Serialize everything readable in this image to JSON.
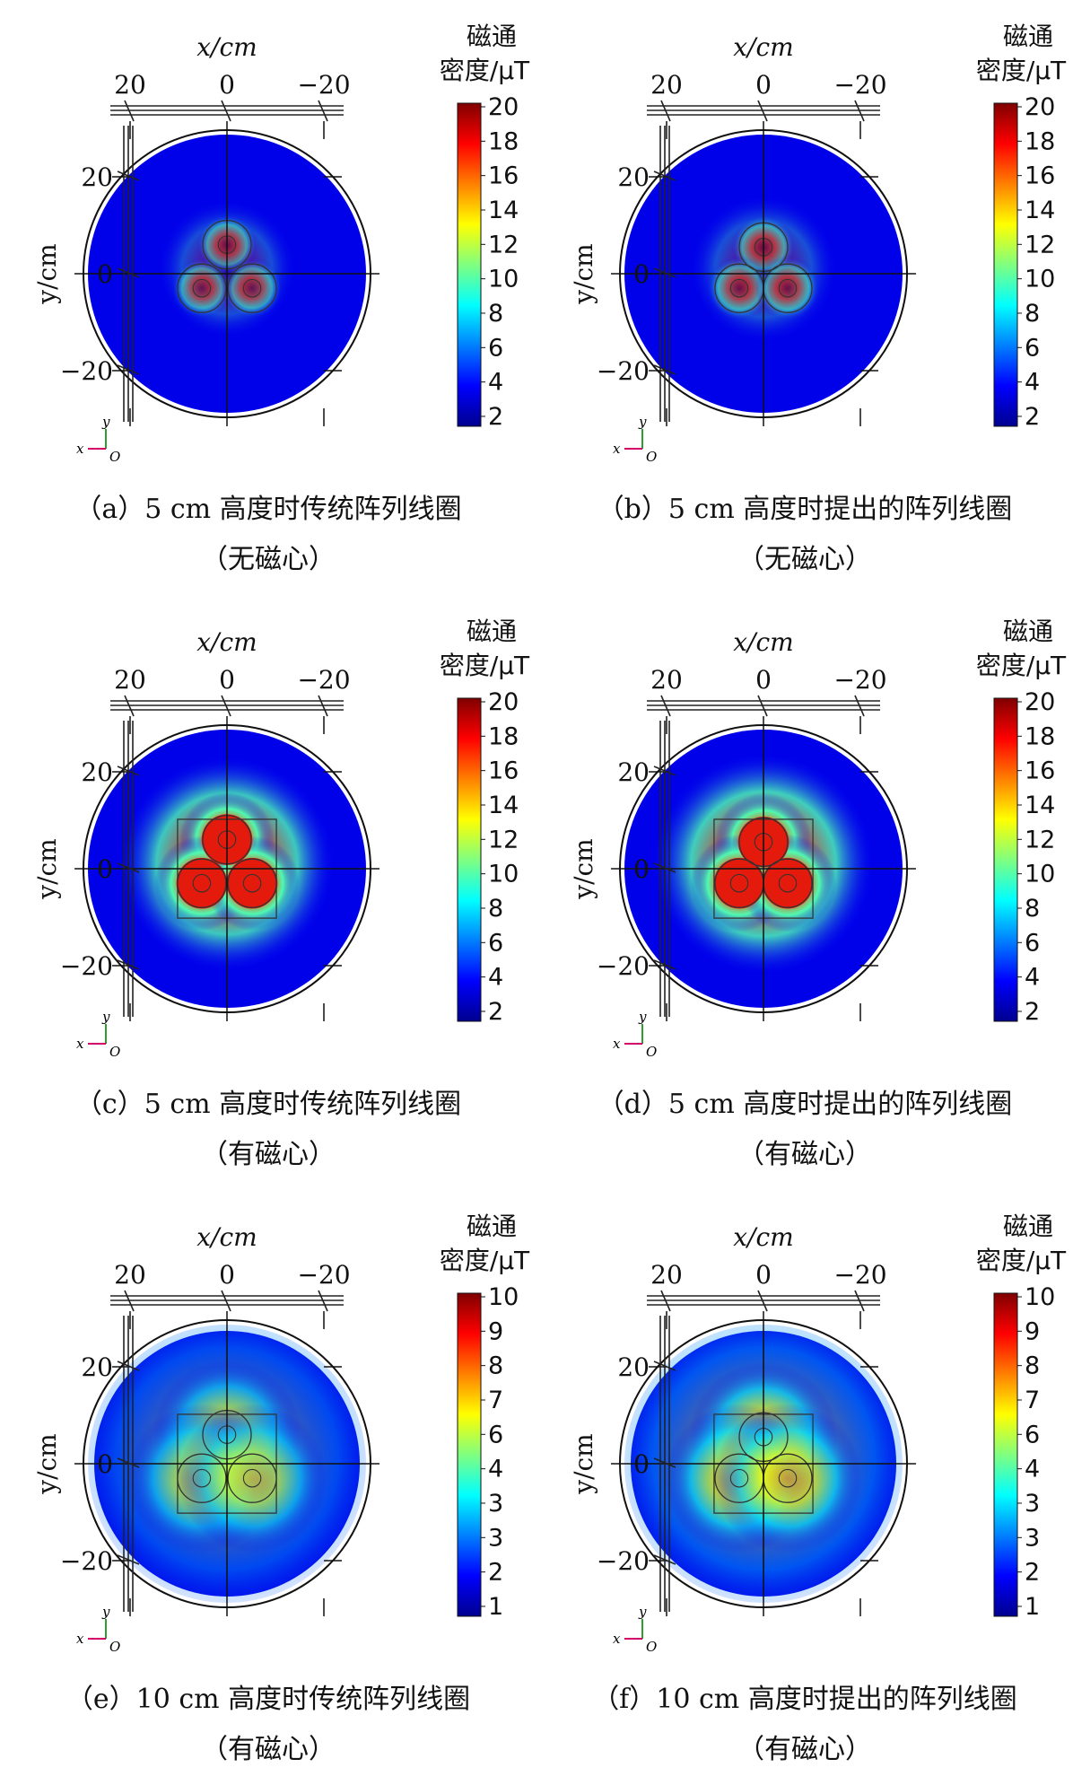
{
  "chart_data": [
    {
      "type": "heatmap",
      "panel_id": "a",
      "caption_line1": "（a）5 cm 高度时传统阵列线圈",
      "caption_line2": "（无磁心）",
      "xlabel": "x/cm",
      "ylabel": "y/cm",
      "x_ticks": [
        "20",
        "0",
        "−20"
      ],
      "y_ticks": [
        "20",
        "0",
        "−20"
      ],
      "xlim": [
        25,
        -25
      ],
      "ylim": [
        -25,
        25
      ],
      "colorbar_title": [
        "磁通",
        "密度/μT"
      ],
      "colorbar_ticks": [
        "20",
        "18",
        "16",
        "14",
        "12",
        "10",
        "8",
        "6",
        "4",
        "2"
      ],
      "colorbar_range": [
        0,
        20
      ],
      "has_core": false,
      "core_square": false,
      "layout": "traditional",
      "coil_centers_cm": [
        [
          0,
          6
        ],
        [
          5.2,
          -3
        ],
        [
          -5.2,
          -3
        ]
      ],
      "coil_radius_cm": 5,
      "peak_uT": 20,
      "field_level": 0.58,
      "field_spread_cm": 4.5,
      "triad": {
        "x": "x",
        "y": "y",
        "origin": "O"
      }
    },
    {
      "type": "heatmap",
      "panel_id": "b",
      "caption_line1": "（b）5 cm 高度时提出的阵列线圈",
      "caption_line2": "（无磁心）",
      "xlabel": "x/cm",
      "ylabel": "y/cm",
      "x_ticks": [
        "20",
        "0",
        "−20"
      ],
      "y_ticks": [
        "20",
        "0",
        "−20"
      ],
      "xlim": [
        25,
        -25
      ],
      "ylim": [
        -25,
        25
      ],
      "colorbar_title": [
        "磁通",
        "密度/μT"
      ],
      "colorbar_ticks": [
        "20",
        "18",
        "16",
        "14",
        "12",
        "10",
        "8",
        "6",
        "4",
        "2"
      ],
      "colorbar_range": [
        0,
        20
      ],
      "has_core": false,
      "core_square": false,
      "layout": "proposed",
      "coil_centers_cm": [
        [
          0,
          5.5
        ],
        [
          5,
          -3
        ],
        [
          -5,
          -3
        ]
      ],
      "coil_radius_cm": 5,
      "peak_uT": 20,
      "field_level": 0.6,
      "field_spread_cm": 4.8,
      "triad": {
        "x": "x",
        "y": "y",
        "origin": "O"
      }
    },
    {
      "type": "heatmap",
      "panel_id": "c",
      "caption_line1": "（c）5 cm 高度时传统阵列线圈",
      "caption_line2": "（有磁心）",
      "xlabel": "x/cm",
      "ylabel": "y/cm",
      "x_ticks": [
        "20",
        "0",
        "−20"
      ],
      "y_ticks": [
        "20",
        "0",
        "−20"
      ],
      "xlim": [
        25,
        -25
      ],
      "ylim": [
        -25,
        25
      ],
      "colorbar_title": [
        "磁通",
        "密度/μT"
      ],
      "colorbar_ticks": [
        "20",
        "18",
        "16",
        "14",
        "12",
        "10",
        "8",
        "6",
        "4",
        "2"
      ],
      "colorbar_range": [
        0,
        20
      ],
      "has_core": true,
      "core_square": true,
      "layout": "traditional",
      "coil_centers_cm": [
        [
          0,
          6
        ],
        [
          5.2,
          -3
        ],
        [
          -5.2,
          -3
        ]
      ],
      "coil_radius_cm": 5,
      "peak_uT": 20,
      "field_level": 1.5,
      "field_spread_cm": 7,
      "triad": {
        "x": "x",
        "y": "y",
        "origin": "O"
      }
    },
    {
      "type": "heatmap",
      "panel_id": "d",
      "caption_line1": "（d）5 cm 高度时提出的阵列线圈",
      "caption_line2": "（有磁心）",
      "xlabel": "x/cm",
      "ylabel": "y/cm",
      "x_ticks": [
        "20",
        "0",
        "−20"
      ],
      "y_ticks": [
        "20",
        "0",
        "−20"
      ],
      "xlim": [
        25,
        -25
      ],
      "ylim": [
        -25,
        25
      ],
      "colorbar_title": [
        "磁通",
        "密度/μT"
      ],
      "colorbar_ticks": [
        "20",
        "18",
        "16",
        "14",
        "12",
        "10",
        "8",
        "6",
        "4",
        "2"
      ],
      "colorbar_range": [
        0,
        20
      ],
      "has_core": true,
      "core_square": true,
      "layout": "proposed",
      "coil_centers_cm": [
        [
          0,
          5.5
        ],
        [
          5,
          -3
        ],
        [
          -5,
          -3
        ]
      ],
      "coil_radius_cm": 5,
      "peak_uT": 20,
      "field_level": 1.55,
      "field_spread_cm": 7.2,
      "triad": {
        "x": "x",
        "y": "y",
        "origin": "O"
      }
    },
    {
      "type": "heatmap",
      "panel_id": "e",
      "caption_line1": "（e）10 cm 高度时传统阵列线圈",
      "caption_line2": "（有磁心）",
      "xlabel": "x/cm",
      "ylabel": "y/cm",
      "x_ticks": [
        "20",
        "0",
        "−20"
      ],
      "y_ticks": [
        "20",
        "0",
        "−20"
      ],
      "xlim": [
        25,
        -25
      ],
      "ylim": [
        -25,
        25
      ],
      "colorbar_title": [
        "磁通",
        "密度/μT"
      ],
      "colorbar_ticks": [
        "10",
        "9",
        "8",
        "7",
        "6",
        "4",
        "3",
        "3",
        "2",
        "1"
      ],
      "colorbar_range": [
        0,
        10
      ],
      "has_core": true,
      "core_square": true,
      "layout": "traditional",
      "coil_centers_cm": [
        [
          0,
          6
        ],
        [
          5.2,
          -3
        ],
        [
          -5.2,
          -3
        ]
      ],
      "coil_radius_cm": 5,
      "peak_uT": 7,
      "field_level": 0.72,
      "field_spread_cm": 11,
      "triad": {
        "x": "x",
        "y": "y",
        "origin": "O"
      }
    },
    {
      "type": "heatmap",
      "panel_id": "f",
      "caption_line1": "（f）10 cm 高度时提出的阵列线圈",
      "caption_line2": "（有磁心）",
      "xlabel": "x/cm",
      "ylabel": "y/cm",
      "x_ticks": [
        "20",
        "0",
        "−20"
      ],
      "y_ticks": [
        "20",
        "0",
        "−20"
      ],
      "xlim": [
        25,
        -25
      ],
      "ylim": [
        -25,
        25
      ],
      "colorbar_title": [
        "磁通",
        "密度/μT"
      ],
      "colorbar_ticks": [
        "10",
        "9",
        "8",
        "7",
        "6",
        "4",
        "3",
        "3",
        "2",
        "1"
      ],
      "colorbar_range": [
        0,
        10
      ],
      "has_core": true,
      "core_square": true,
      "layout": "proposed",
      "coil_centers_cm": [
        [
          0,
          5.5
        ],
        [
          5,
          -3
        ],
        [
          -5,
          -3
        ]
      ],
      "coil_radius_cm": 5,
      "peak_uT": 7.5,
      "field_level": 0.76,
      "field_spread_cm": 11,
      "triad": {
        "x": "x",
        "y": "y",
        "origin": "O"
      }
    }
  ],
  "colors": {
    "jet": [
      "#00008f",
      "#0000ff",
      "#00ffff",
      "#ffff00",
      "#ff0000",
      "#800000"
    ],
    "axis": "#111111",
    "triad_x": "#d4006a",
    "triad_y": "#2e9e2e"
  }
}
